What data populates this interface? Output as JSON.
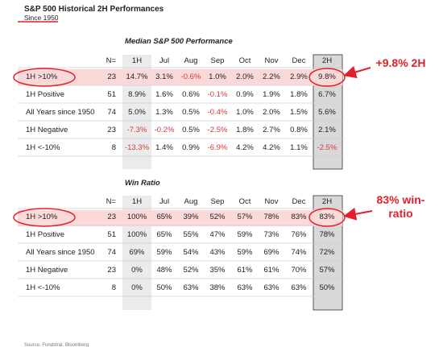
{
  "header": {
    "title": "S&P 500 Historical 2H Performances",
    "subtitle": "Since 1950"
  },
  "tables": [
    {
      "title": "Median S&P 500 Performance",
      "columns": [
        "N=",
        "1H",
        "Jul",
        "Aug",
        "Sep",
        "Oct",
        "Nov",
        "Dec",
        "2H"
      ],
      "rows": [
        {
          "label": "1H >10%",
          "cells": [
            "23",
            "14.7%",
            "3.1%",
            "-0.6%",
            "1.0%",
            "2.0%",
            "2.2%",
            "2.9%",
            "9.8%"
          ]
        },
        {
          "label": "1H Positive",
          "cells": [
            "51",
            "8.9%",
            "1.6%",
            "0.6%",
            "-0.1%",
            "0.9%",
            "1.9%",
            "1.8%",
            "6.7%"
          ]
        },
        {
          "label": "All Years since 1950",
          "cells": [
            "74",
            "5.0%",
            "1.3%",
            "0.5%",
            "-0.4%",
            "1.0%",
            "2.0%",
            "1.5%",
            "5.6%"
          ]
        },
        {
          "label": "1H Negative",
          "cells": [
            "23",
            "-7.3%",
            "-0.2%",
            "0.5%",
            "-2.5%",
            "1.8%",
            "2.7%",
            "0.8%",
            "2.1%"
          ]
        },
        {
          "label": "1H <-10%",
          "cells": [
            "8",
            "-13.3%",
            "1.4%",
            "0.9%",
            "-6.9%",
            "4.2%",
            "4.2%",
            "1.1%",
            "-2.5%"
          ]
        }
      ]
    },
    {
      "title": "Win Ratio",
      "columns": [
        "N=",
        "1H",
        "Jul",
        "Aug",
        "Sep",
        "Oct",
        "Nov",
        "Dec",
        "2H"
      ],
      "rows": [
        {
          "label": "1H >10%",
          "cells": [
            "23",
            "100%",
            "65%",
            "39%",
            "52%",
            "57%",
            "78%",
            "83%",
            "83%"
          ]
        },
        {
          "label": "1H Positive",
          "cells": [
            "51",
            "100%",
            "65%",
            "55%",
            "47%",
            "59%",
            "73%",
            "76%",
            "78%"
          ]
        },
        {
          "label": "All Years since 1950",
          "cells": [
            "74",
            "69%",
            "59%",
            "54%",
            "43%",
            "59%",
            "69%",
            "74%",
            "72%"
          ]
        },
        {
          "label": "1H Negative",
          "cells": [
            "23",
            "0%",
            "48%",
            "52%",
            "35%",
            "61%",
            "61%",
            "70%",
            "57%"
          ]
        },
        {
          "label": "1H <-10%",
          "cells": [
            "8",
            "0%",
            "50%",
            "63%",
            "38%",
            "63%",
            "63%",
            "63%",
            "50%"
          ]
        }
      ]
    }
  ],
  "annotations": [
    [
      "+9.8% 2H"
    ],
    [
      "83% win-",
      "ratio"
    ]
  ],
  "source": "Source: Fundstrat, Bloomberg"
}
